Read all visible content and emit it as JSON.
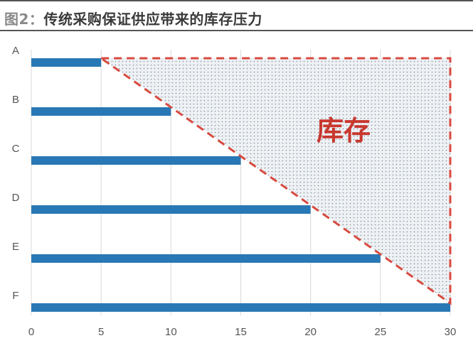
{
  "title": {
    "prefix": "图2：",
    "text": "传统采购保证供应带来的库存压力"
  },
  "chart_data": {
    "type": "bar",
    "orientation": "horizontal",
    "categories": [
      "A",
      "B",
      "C",
      "D",
      "E",
      "F"
    ],
    "values": [
      5,
      10,
      15,
      20,
      25,
      30
    ],
    "xlim": [
      0,
      30
    ],
    "xticks": [
      0,
      5,
      10,
      15,
      20,
      25,
      30
    ],
    "grid": "vertical",
    "bar_color": "#2878b5",
    "annotation": {
      "label": "库存",
      "shape": "triangle",
      "vertices_data": [
        [
          5,
          "A"
        ],
        [
          30,
          "A"
        ],
        [
          30,
          "F"
        ]
      ],
      "border_color": "#d84a3f",
      "border_style": "dashed",
      "fill": "dotted"
    }
  }
}
